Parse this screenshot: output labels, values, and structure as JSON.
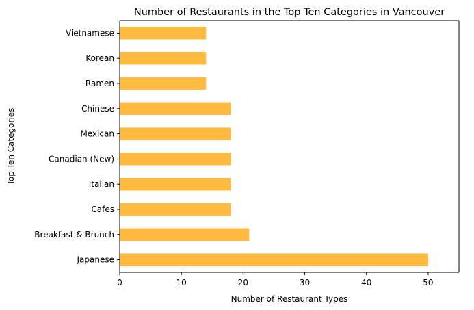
{
  "chart_data": {
    "type": "bar",
    "orientation": "horizontal",
    "title": "Number of Restaurants in the Top Ten Categories in Vancouver",
    "xlabel": "Number of Restaurant Types",
    "ylabel": "Top Ten Categories",
    "categories": [
      "Japanese",
      "Breakfast & Brunch",
      "Cafes",
      "Italian",
      "Canadian (New)",
      "Mexican",
      "Chinese",
      "Ramen",
      "Korean",
      "Vietnamese"
    ],
    "values": [
      50,
      21,
      18,
      18,
      18,
      18,
      18,
      14,
      14,
      14
    ],
    "xlim": [
      0,
      55
    ],
    "xticks": [
      0,
      10,
      20,
      30,
      40,
      50
    ],
    "grid": false,
    "colors": {
      "bar": "#FFBA3F",
      "axis": "#000000",
      "background": "#FFFFFF"
    }
  }
}
